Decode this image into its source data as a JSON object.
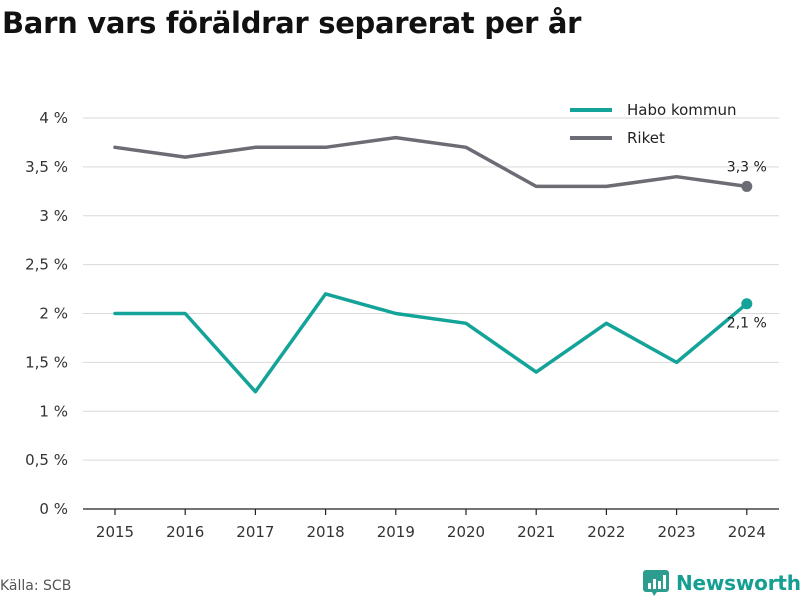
{
  "title": "Barn vars föräldrar separerat per år",
  "source": "Källa: SCB",
  "brand": "Newsworthy",
  "colors": {
    "habo": "#13a398",
    "riket": "#6c6c74",
    "grid": "#d9d9d9",
    "axis": "#222222"
  },
  "chart_data": {
    "type": "line",
    "x": [
      "2015",
      "2016",
      "2017",
      "2018",
      "2019",
      "2020",
      "2021",
      "2022",
      "2023",
      "2024"
    ],
    "series": [
      {
        "name": "Habo kommun",
        "values": [
          2.0,
          2.0,
          1.2,
          2.2,
          2.0,
          1.9,
          1.4,
          1.9,
          1.5,
          2.1
        ],
        "end_label": "2,1 %"
      },
      {
        "name": "Riket",
        "values": [
          3.7,
          3.6,
          3.7,
          3.7,
          3.8,
          3.7,
          3.3,
          3.3,
          3.4,
          3.3
        ],
        "end_label": "3,3 %"
      }
    ],
    "ylim": [
      0,
      4
    ],
    "yticks": [
      0,
      0.5,
      1,
      1.5,
      2,
      2.5,
      3,
      3.5,
      4
    ],
    "ytick_labels": [
      "0 %",
      "0,5 %",
      "1 %",
      "1,5 %",
      "2 %",
      "2,5 %",
      "3 %",
      "3,5 %",
      "4 %"
    ],
    "grid": "horizontal",
    "legend_position": "top-right"
  }
}
